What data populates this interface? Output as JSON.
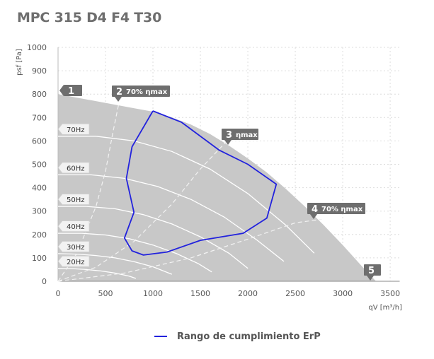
{
  "title": "MPC 315 D4 F4 T30",
  "legend": {
    "label": "Rango de cumplimiento ErP",
    "color": "#2222dd"
  },
  "chart_data": {
    "type": "line",
    "title": "MPC 315 D4 F4 T30",
    "xlabel": "qV [m³/h]",
    "ylabel": "psf [Pa]",
    "xlim": [
      0,
      3600
    ],
    "ylim": [
      0,
      1000
    ],
    "xticks": [
      0,
      500,
      1000,
      1500,
      2000,
      2500,
      3000,
      3500
    ],
    "yticks": [
      0,
      100,
      200,
      300,
      400,
      500,
      600,
      700,
      800,
      900,
      1000
    ],
    "grid": true,
    "legend_position": "bottom",
    "envelope": {
      "name": "operating area",
      "color": "#c8c8c8",
      "x": [
        0,
        200,
        400,
        600,
        800,
        1000,
        1200,
        1400,
        1600,
        1800,
        2000,
        2200,
        2400,
        2600,
        2800,
        3000,
        3200,
        3350
      ],
      "y": [
        800,
        785,
        770,
        755,
        740,
        725,
        700,
        670,
        630,
        580,
        525,
        465,
        395,
        320,
        240,
        155,
        65,
        0
      ]
    },
    "speed_curves": [
      {
        "label": "70Hz",
        "x": [
          0,
          400,
          800,
          1200,
          1600,
          2000,
          2400,
          2700
        ],
        "y": [
          620,
          620,
          600,
          555,
          480,
          375,
          240,
          120
        ]
      },
      {
        "label": "60Hz",
        "x": [
          0,
          350,
          700,
          1050,
          1400,
          1750,
          2100,
          2380
        ],
        "y": [
          455,
          455,
          440,
          405,
          350,
          275,
          175,
          85
        ]
      },
      {
        "label": "50Hz",
        "x": [
          0,
          300,
          600,
          900,
          1200,
          1500,
          1800,
          2000
        ],
        "y": [
          320,
          320,
          310,
          285,
          245,
          190,
          120,
          55
        ]
      },
      {
        "label": "40Hz",
        "x": [
          0,
          250,
          500,
          750,
          1000,
          1250,
          1480,
          1620
        ],
        "y": [
          205,
          205,
          198,
          182,
          155,
          118,
          75,
          40
        ]
      },
      {
        "label": "30Hz",
        "x": [
          0,
          200,
          400,
          600,
          800,
          1000,
          1200
        ],
        "y": [
          118,
          116,
          110,
          100,
          84,
          62,
          30
        ]
      },
      {
        "label": "20Hz",
        "x": [
          0,
          150,
          300,
          450,
          600,
          750,
          820
        ],
        "y": [
          55,
          54,
          50,
          44,
          35,
          22,
          12
        ]
      }
    ],
    "efficiency_lines": [
      {
        "label": "70% ηmax",
        "x": [
          0,
          200,
          400,
          500,
          580,
          640
        ],
        "y": [
          0,
          120,
          320,
          470,
          640,
          760
        ]
      },
      {
        "label": "ηmax",
        "x": [
          0,
          400,
          800,
          1200,
          1500,
          1780
        ],
        "y": [
          0,
          60,
          170,
          330,
          480,
          600
        ]
      },
      {
        "label": "70% ηmax",
        "x": [
          0,
          700,
          1400,
          2000,
          2500,
          2780
        ],
        "y": [
          0,
          35,
          100,
          180,
          250,
          265
        ]
      }
    ],
    "series": [
      {
        "name": "Rango de cumplimiento ErP",
        "color": "#2222dd",
        "x": [
          1000,
          1300,
          1700,
          2000,
          2300,
          2200,
          1950,
          1500,
          1150,
          900,
          780,
          700,
          800,
          720,
          780,
          1000
        ],
        "y": [
          728,
          680,
          560,
          500,
          415,
          270,
          205,
          175,
          125,
          112,
          130,
          185,
          295,
          440,
          575,
          728
        ]
      }
    ],
    "points": [
      {
        "num": "1",
        "text": ""
      },
      {
        "num": "2",
        "text": "70% ηmax"
      },
      {
        "num": "3",
        "text": "ηmax"
      },
      {
        "num": "4",
        "text": "70% ηmax"
      },
      {
        "num": "5",
        "text": ""
      }
    ]
  }
}
